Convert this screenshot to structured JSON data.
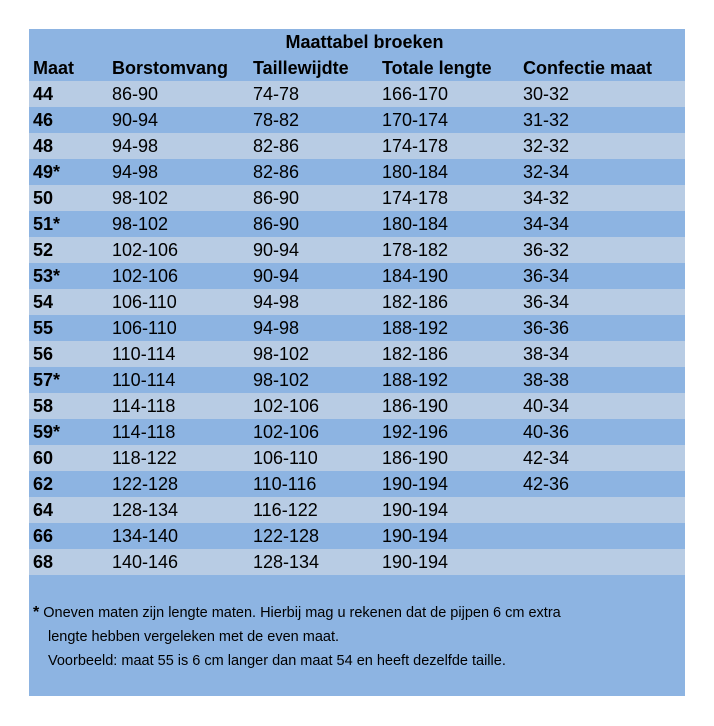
{
  "title": "Maattabel broeken",
  "headers": [
    "Maat",
    "Borstomvang",
    "Taillewijdte",
    "Totale lengte",
    "Confectie maat"
  ],
  "rows": [
    [
      "44",
      "86-90",
      "74-78",
      "166-170",
      "30-32"
    ],
    [
      "46",
      "90-94",
      "78-82",
      "170-174",
      "31-32"
    ],
    [
      "48",
      "94-98",
      "82-86",
      "174-178",
      "32-32"
    ],
    [
      "49*",
      "94-98",
      "82-86",
      "180-184",
      "32-34"
    ],
    [
      "50",
      "98-102",
      "86-90",
      "174-178",
      "34-32"
    ],
    [
      "51*",
      "98-102",
      "86-90",
      "180-184",
      "34-34"
    ],
    [
      "52",
      "102-106",
      "90-94",
      "178-182",
      "36-32"
    ],
    [
      "53*",
      "102-106",
      "90-94",
      "184-190",
      "36-34"
    ],
    [
      "54",
      "106-110",
      "94-98",
      "182-186",
      "36-34"
    ],
    [
      "55",
      "106-110",
      "94-98",
      "188-192",
      "36-36"
    ],
    [
      "56",
      "110-114",
      "98-102",
      "182-186",
      "38-34"
    ],
    [
      "57*",
      "110-114",
      "98-102",
      "188-192",
      "38-38"
    ],
    [
      "58",
      "114-118",
      "102-106",
      "186-190",
      "40-34"
    ],
    [
      "59*",
      "114-118",
      "102-106",
      "192-196",
      "40-36"
    ],
    [
      "60",
      "118-122",
      "106-110",
      "186-190",
      "42-34"
    ],
    [
      "62",
      "122-128",
      "110-116",
      "190-194",
      "42-36"
    ],
    [
      "64",
      "128-134",
      "116-122",
      "190-194",
      ""
    ],
    [
      "66",
      "134-140",
      "122-128",
      "190-194",
      ""
    ],
    [
      "68",
      "140-146",
      "128-134",
      "190-194",
      ""
    ]
  ],
  "footnote": {
    "star": "*",
    "lines": [
      "Oneven maten zijn lengte maten. Hierbij mag u rekenen dat de pijpen 6 cm extra",
      "lengte hebben vergeleken met de even maat.",
      "Voorbeeld: maat 55 is 6 cm langer dan maat 54 en heeft dezelfde taille."
    ]
  },
  "colors": {
    "panel": "#8db4e2",
    "row_light": "#b8cce4",
    "row_dark": "#8db4e2"
  }
}
